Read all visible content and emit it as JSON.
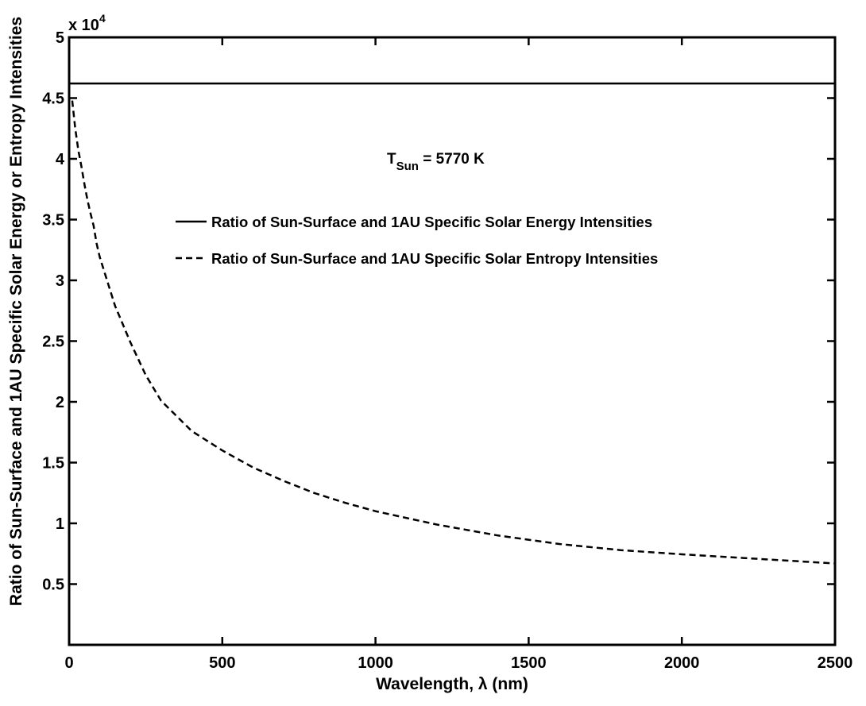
{
  "chart_data": {
    "type": "line",
    "xlabel": "Wavelength, λ (nm)",
    "ylabel": "Ratio of Sun-Surface and 1AU Specific Solar Energy or Entropy Intensities",
    "xlim": [
      0,
      2500
    ],
    "ylim": [
      0,
      50000
    ],
    "x_ticks": [
      0,
      500,
      1000,
      1500,
      2000,
      2500
    ],
    "x_tick_labels": [
      "0",
      "500",
      "1000",
      "1500",
      "2000",
      "2500"
    ],
    "y_ticks": [
      5000,
      10000,
      15000,
      20000,
      25000,
      30000,
      35000,
      40000,
      45000,
      50000
    ],
    "y_tick_labels": [
      "0.5",
      "1",
      "1.5",
      "2",
      "2.5",
      "3",
      "3.5",
      "4",
      "4.5",
      "5"
    ],
    "y_exponent": {
      "base": "x 10",
      "power": "4"
    },
    "grid": false,
    "legend_position": "center",
    "annotation": {
      "main": "T",
      "subscript": "Sun",
      "suffix": " = 5770 K"
    },
    "series": [
      {
        "name": "Ratio of Sun-Surface and 1AU Specific Solar Energy Intensities",
        "style": "solid",
        "color": "#000000",
        "x": [
          0,
          2500
        ],
        "y": [
          46200,
          46200
        ]
      },
      {
        "name": "Ratio of Sun-Surface and 1AU Specific Solar Entropy Intensities",
        "style": "dashed",
        "color": "#000000",
        "x": [
          10,
          20,
          30,
          40,
          50,
          60,
          70,
          80,
          90,
          100,
          150,
          200,
          250,
          300,
          400,
          500,
          600,
          700,
          800,
          900,
          1000,
          1200,
          1400,
          1600,
          1800,
          2000,
          2200,
          2400,
          2500
        ],
        "y": [
          44800,
          42500,
          40700,
          39400,
          37900,
          36600,
          35500,
          34500,
          33000,
          31900,
          27900,
          24900,
          22200,
          20100,
          17600,
          16000,
          14600,
          13500,
          12500,
          11700,
          11000,
          9900,
          9000,
          8300,
          7800,
          7450,
          7150,
          6850,
          6700
        ]
      }
    ]
  }
}
